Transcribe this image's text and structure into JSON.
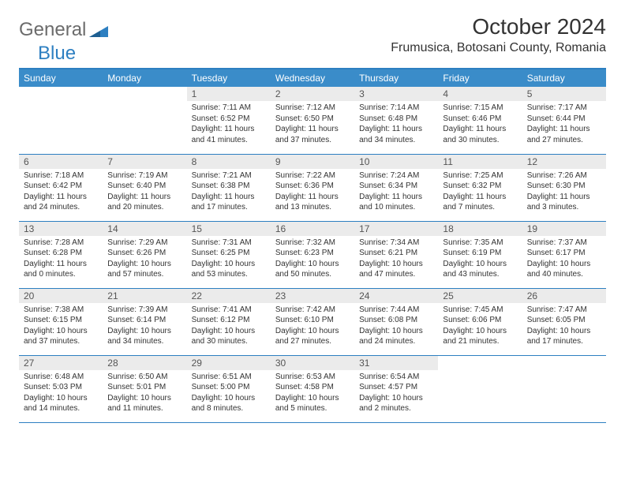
{
  "logo": {
    "textGeneral": "General",
    "textBlue": "Blue"
  },
  "header": {
    "month": "October 2024",
    "location": "Frumusica, Botosani County, Romania"
  },
  "colors": {
    "headerBg": "#3a8cc9",
    "ruleColor": "#2d7fc1",
    "dayNumBg": "#ebebeb",
    "logoGray": "#6b6b6b",
    "logoBlue": "#2d7fc1",
    "textDark": "#333333"
  },
  "dayHeaders": [
    "Sunday",
    "Monday",
    "Tuesday",
    "Wednesday",
    "Thursday",
    "Friday",
    "Saturday"
  ],
  "weeks": [
    [
      null,
      null,
      {
        "n": "1",
        "sr": "7:11 AM",
        "ss": "6:52 PM",
        "dl": "11 hours and 41 minutes."
      },
      {
        "n": "2",
        "sr": "7:12 AM",
        "ss": "6:50 PM",
        "dl": "11 hours and 37 minutes."
      },
      {
        "n": "3",
        "sr": "7:14 AM",
        "ss": "6:48 PM",
        "dl": "11 hours and 34 minutes."
      },
      {
        "n": "4",
        "sr": "7:15 AM",
        "ss": "6:46 PM",
        "dl": "11 hours and 30 minutes."
      },
      {
        "n": "5",
        "sr": "7:17 AM",
        "ss": "6:44 PM",
        "dl": "11 hours and 27 minutes."
      }
    ],
    [
      {
        "n": "6",
        "sr": "7:18 AM",
        "ss": "6:42 PM",
        "dl": "11 hours and 24 minutes."
      },
      {
        "n": "7",
        "sr": "7:19 AM",
        "ss": "6:40 PM",
        "dl": "11 hours and 20 minutes."
      },
      {
        "n": "8",
        "sr": "7:21 AM",
        "ss": "6:38 PM",
        "dl": "11 hours and 17 minutes."
      },
      {
        "n": "9",
        "sr": "7:22 AM",
        "ss": "6:36 PM",
        "dl": "11 hours and 13 minutes."
      },
      {
        "n": "10",
        "sr": "7:24 AM",
        "ss": "6:34 PM",
        "dl": "11 hours and 10 minutes."
      },
      {
        "n": "11",
        "sr": "7:25 AM",
        "ss": "6:32 PM",
        "dl": "11 hours and 7 minutes."
      },
      {
        "n": "12",
        "sr": "7:26 AM",
        "ss": "6:30 PM",
        "dl": "11 hours and 3 minutes."
      }
    ],
    [
      {
        "n": "13",
        "sr": "7:28 AM",
        "ss": "6:28 PM",
        "dl": "11 hours and 0 minutes."
      },
      {
        "n": "14",
        "sr": "7:29 AM",
        "ss": "6:26 PM",
        "dl": "10 hours and 57 minutes."
      },
      {
        "n": "15",
        "sr": "7:31 AM",
        "ss": "6:25 PM",
        "dl": "10 hours and 53 minutes."
      },
      {
        "n": "16",
        "sr": "7:32 AM",
        "ss": "6:23 PM",
        "dl": "10 hours and 50 minutes."
      },
      {
        "n": "17",
        "sr": "7:34 AM",
        "ss": "6:21 PM",
        "dl": "10 hours and 47 minutes."
      },
      {
        "n": "18",
        "sr": "7:35 AM",
        "ss": "6:19 PM",
        "dl": "10 hours and 43 minutes."
      },
      {
        "n": "19",
        "sr": "7:37 AM",
        "ss": "6:17 PM",
        "dl": "10 hours and 40 minutes."
      }
    ],
    [
      {
        "n": "20",
        "sr": "7:38 AM",
        "ss": "6:15 PM",
        "dl": "10 hours and 37 minutes."
      },
      {
        "n": "21",
        "sr": "7:39 AM",
        "ss": "6:14 PM",
        "dl": "10 hours and 34 minutes."
      },
      {
        "n": "22",
        "sr": "7:41 AM",
        "ss": "6:12 PM",
        "dl": "10 hours and 30 minutes."
      },
      {
        "n": "23",
        "sr": "7:42 AM",
        "ss": "6:10 PM",
        "dl": "10 hours and 27 minutes."
      },
      {
        "n": "24",
        "sr": "7:44 AM",
        "ss": "6:08 PM",
        "dl": "10 hours and 24 minutes."
      },
      {
        "n": "25",
        "sr": "7:45 AM",
        "ss": "6:06 PM",
        "dl": "10 hours and 21 minutes."
      },
      {
        "n": "26",
        "sr": "7:47 AM",
        "ss": "6:05 PM",
        "dl": "10 hours and 17 minutes."
      }
    ],
    [
      {
        "n": "27",
        "sr": "6:48 AM",
        "ss": "5:03 PM",
        "dl": "10 hours and 14 minutes."
      },
      {
        "n": "28",
        "sr": "6:50 AM",
        "ss": "5:01 PM",
        "dl": "10 hours and 11 minutes."
      },
      {
        "n": "29",
        "sr": "6:51 AM",
        "ss": "5:00 PM",
        "dl": "10 hours and 8 minutes."
      },
      {
        "n": "30",
        "sr": "6:53 AM",
        "ss": "4:58 PM",
        "dl": "10 hours and 5 minutes."
      },
      {
        "n": "31",
        "sr": "6:54 AM",
        "ss": "4:57 PM",
        "dl": "10 hours and 2 minutes."
      },
      null,
      null
    ]
  ],
  "labels": {
    "sunrise": "Sunrise: ",
    "sunset": "Sunset: ",
    "daylight": "Daylight: "
  }
}
